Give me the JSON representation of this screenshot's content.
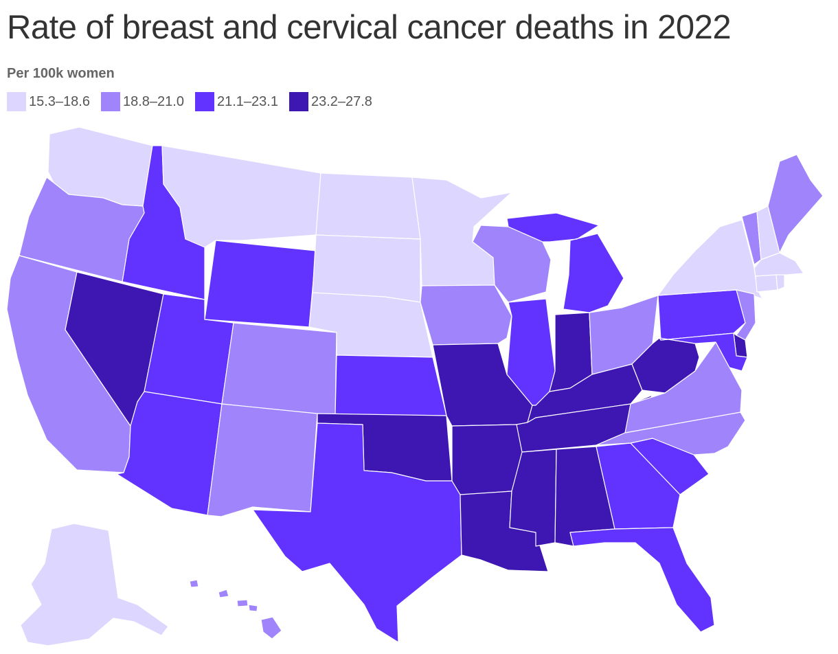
{
  "title": "Rate of breast and cervical cancer deaths in 2022",
  "subtitle": "Per 100k women",
  "legend": {
    "bins": [
      {
        "label": "15.3–18.6",
        "color": "#ddd6fe"
      },
      {
        "label": "18.8–21.0",
        "color": "#a084fc"
      },
      {
        "label": "21.1–23.1",
        "color": "#6233ff"
      },
      {
        "label": "23.2–27.8",
        "color": "#3e17b3"
      }
    ]
  },
  "states": [
    {
      "abbr": "WA",
      "bin": 0
    },
    {
      "abbr": "OR",
      "bin": 1
    },
    {
      "abbr": "CA",
      "bin": 1
    },
    {
      "abbr": "NV",
      "bin": 3
    },
    {
      "abbr": "ID",
      "bin": 2
    },
    {
      "abbr": "MT",
      "bin": 0
    },
    {
      "abbr": "WY",
      "bin": 2
    },
    {
      "abbr": "UT",
      "bin": 2
    },
    {
      "abbr": "AZ",
      "bin": 2
    },
    {
      "abbr": "CO",
      "bin": 1
    },
    {
      "abbr": "NM",
      "bin": 1
    },
    {
      "abbr": "ND",
      "bin": 0
    },
    {
      "abbr": "SD",
      "bin": 0
    },
    {
      "abbr": "NE",
      "bin": 0
    },
    {
      "abbr": "KS",
      "bin": 2
    },
    {
      "abbr": "OK",
      "bin": 3
    },
    {
      "abbr": "TX",
      "bin": 2
    },
    {
      "abbr": "MN",
      "bin": 0
    },
    {
      "abbr": "IA",
      "bin": 1
    },
    {
      "abbr": "MO",
      "bin": 3
    },
    {
      "abbr": "AR",
      "bin": 3
    },
    {
      "abbr": "LA",
      "bin": 3
    },
    {
      "abbr": "WI",
      "bin": 1
    },
    {
      "abbr": "IL",
      "bin": 2
    },
    {
      "abbr": "MI",
      "bin": 2
    },
    {
      "abbr": "IN",
      "bin": 3
    },
    {
      "abbr": "OH",
      "bin": 1
    },
    {
      "abbr": "KY",
      "bin": 3
    },
    {
      "abbr": "TN",
      "bin": 3
    },
    {
      "abbr": "MS",
      "bin": 3
    },
    {
      "abbr": "AL",
      "bin": 3
    },
    {
      "abbr": "GA",
      "bin": 2
    },
    {
      "abbr": "FL",
      "bin": 2
    },
    {
      "abbr": "SC",
      "bin": 2
    },
    {
      "abbr": "NC",
      "bin": 1
    },
    {
      "abbr": "VA",
      "bin": 1
    },
    {
      "abbr": "WV",
      "bin": 3
    },
    {
      "abbr": "PA",
      "bin": 2
    },
    {
      "abbr": "NY",
      "bin": 0
    },
    {
      "abbr": "VT",
      "bin": 1
    },
    {
      "abbr": "NH",
      "bin": 0
    },
    {
      "abbr": "ME",
      "bin": 1
    },
    {
      "abbr": "MA",
      "bin": 0
    },
    {
      "abbr": "CT",
      "bin": 0
    },
    {
      "abbr": "RI",
      "bin": 0
    },
    {
      "abbr": "NJ",
      "bin": 1
    },
    {
      "abbr": "DE",
      "bin": 3
    },
    {
      "abbr": "MD",
      "bin": 2
    },
    {
      "abbr": "AK",
      "bin": 0
    },
    {
      "abbr": "HI",
      "bin": 1
    }
  ]
}
